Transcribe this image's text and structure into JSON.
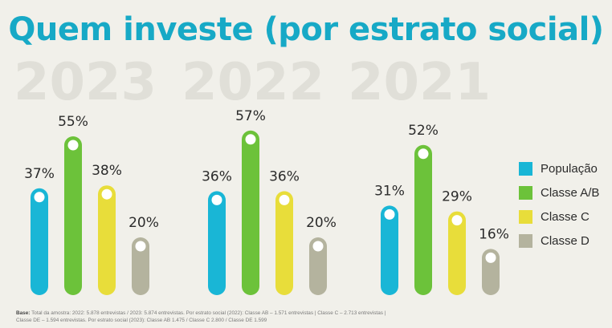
{
  "title": "Quem investe (por estrato social)",
  "colors": {
    "População": "#19b6d6",
    "Classe A/B": "#6cc23a",
    "Classe C": "#e8dd3a",
    "Classe D": "#b4b39e"
  },
  "chart_data": {
    "type": "bar",
    "title": "Quem investe (por estrato social)",
    "series": [
      {
        "name": "População",
        "values": [
          37,
          36,
          31
        ]
      },
      {
        "name": "Classe A/B",
        "values": [
          55,
          57,
          52
        ]
      },
      {
        "name": "Classe C",
        "values": [
          38,
          36,
          29
        ]
      },
      {
        "name": "Classe D",
        "values": [
          20,
          20,
          16
        ]
      }
    ],
    "categories": [
      "2023",
      "2022",
      "2021"
    ],
    "value_labels": [
      [
        "37%",
        "55%",
        "38%",
        "20%"
      ],
      [
        "36%",
        "57%",
        "36%",
        "20%"
      ],
      [
        "31%",
        "52%",
        "29%",
        "16%"
      ]
    ],
    "legend": {
      "placement": "right",
      "entries": [
        "População",
        "Classe A/B",
        "Classe C",
        "Classe D"
      ]
    },
    "grid": false
  },
  "footnote": {
    "label": "Base:",
    "line1": "Total da amostra: 2022: 5.878 entrevistas / 2023: 5.874 entrevistas. Por estrato social (2022): Classe AB – 1.571 entrevistas | Classe C – 2.713 entrevistas |",
    "line2": "Classe DE – 1.594 entrevistas. Por estrato social (2023): Classe AB 1.475 / Classe C 2.800 / Classe DE 1.599"
  }
}
